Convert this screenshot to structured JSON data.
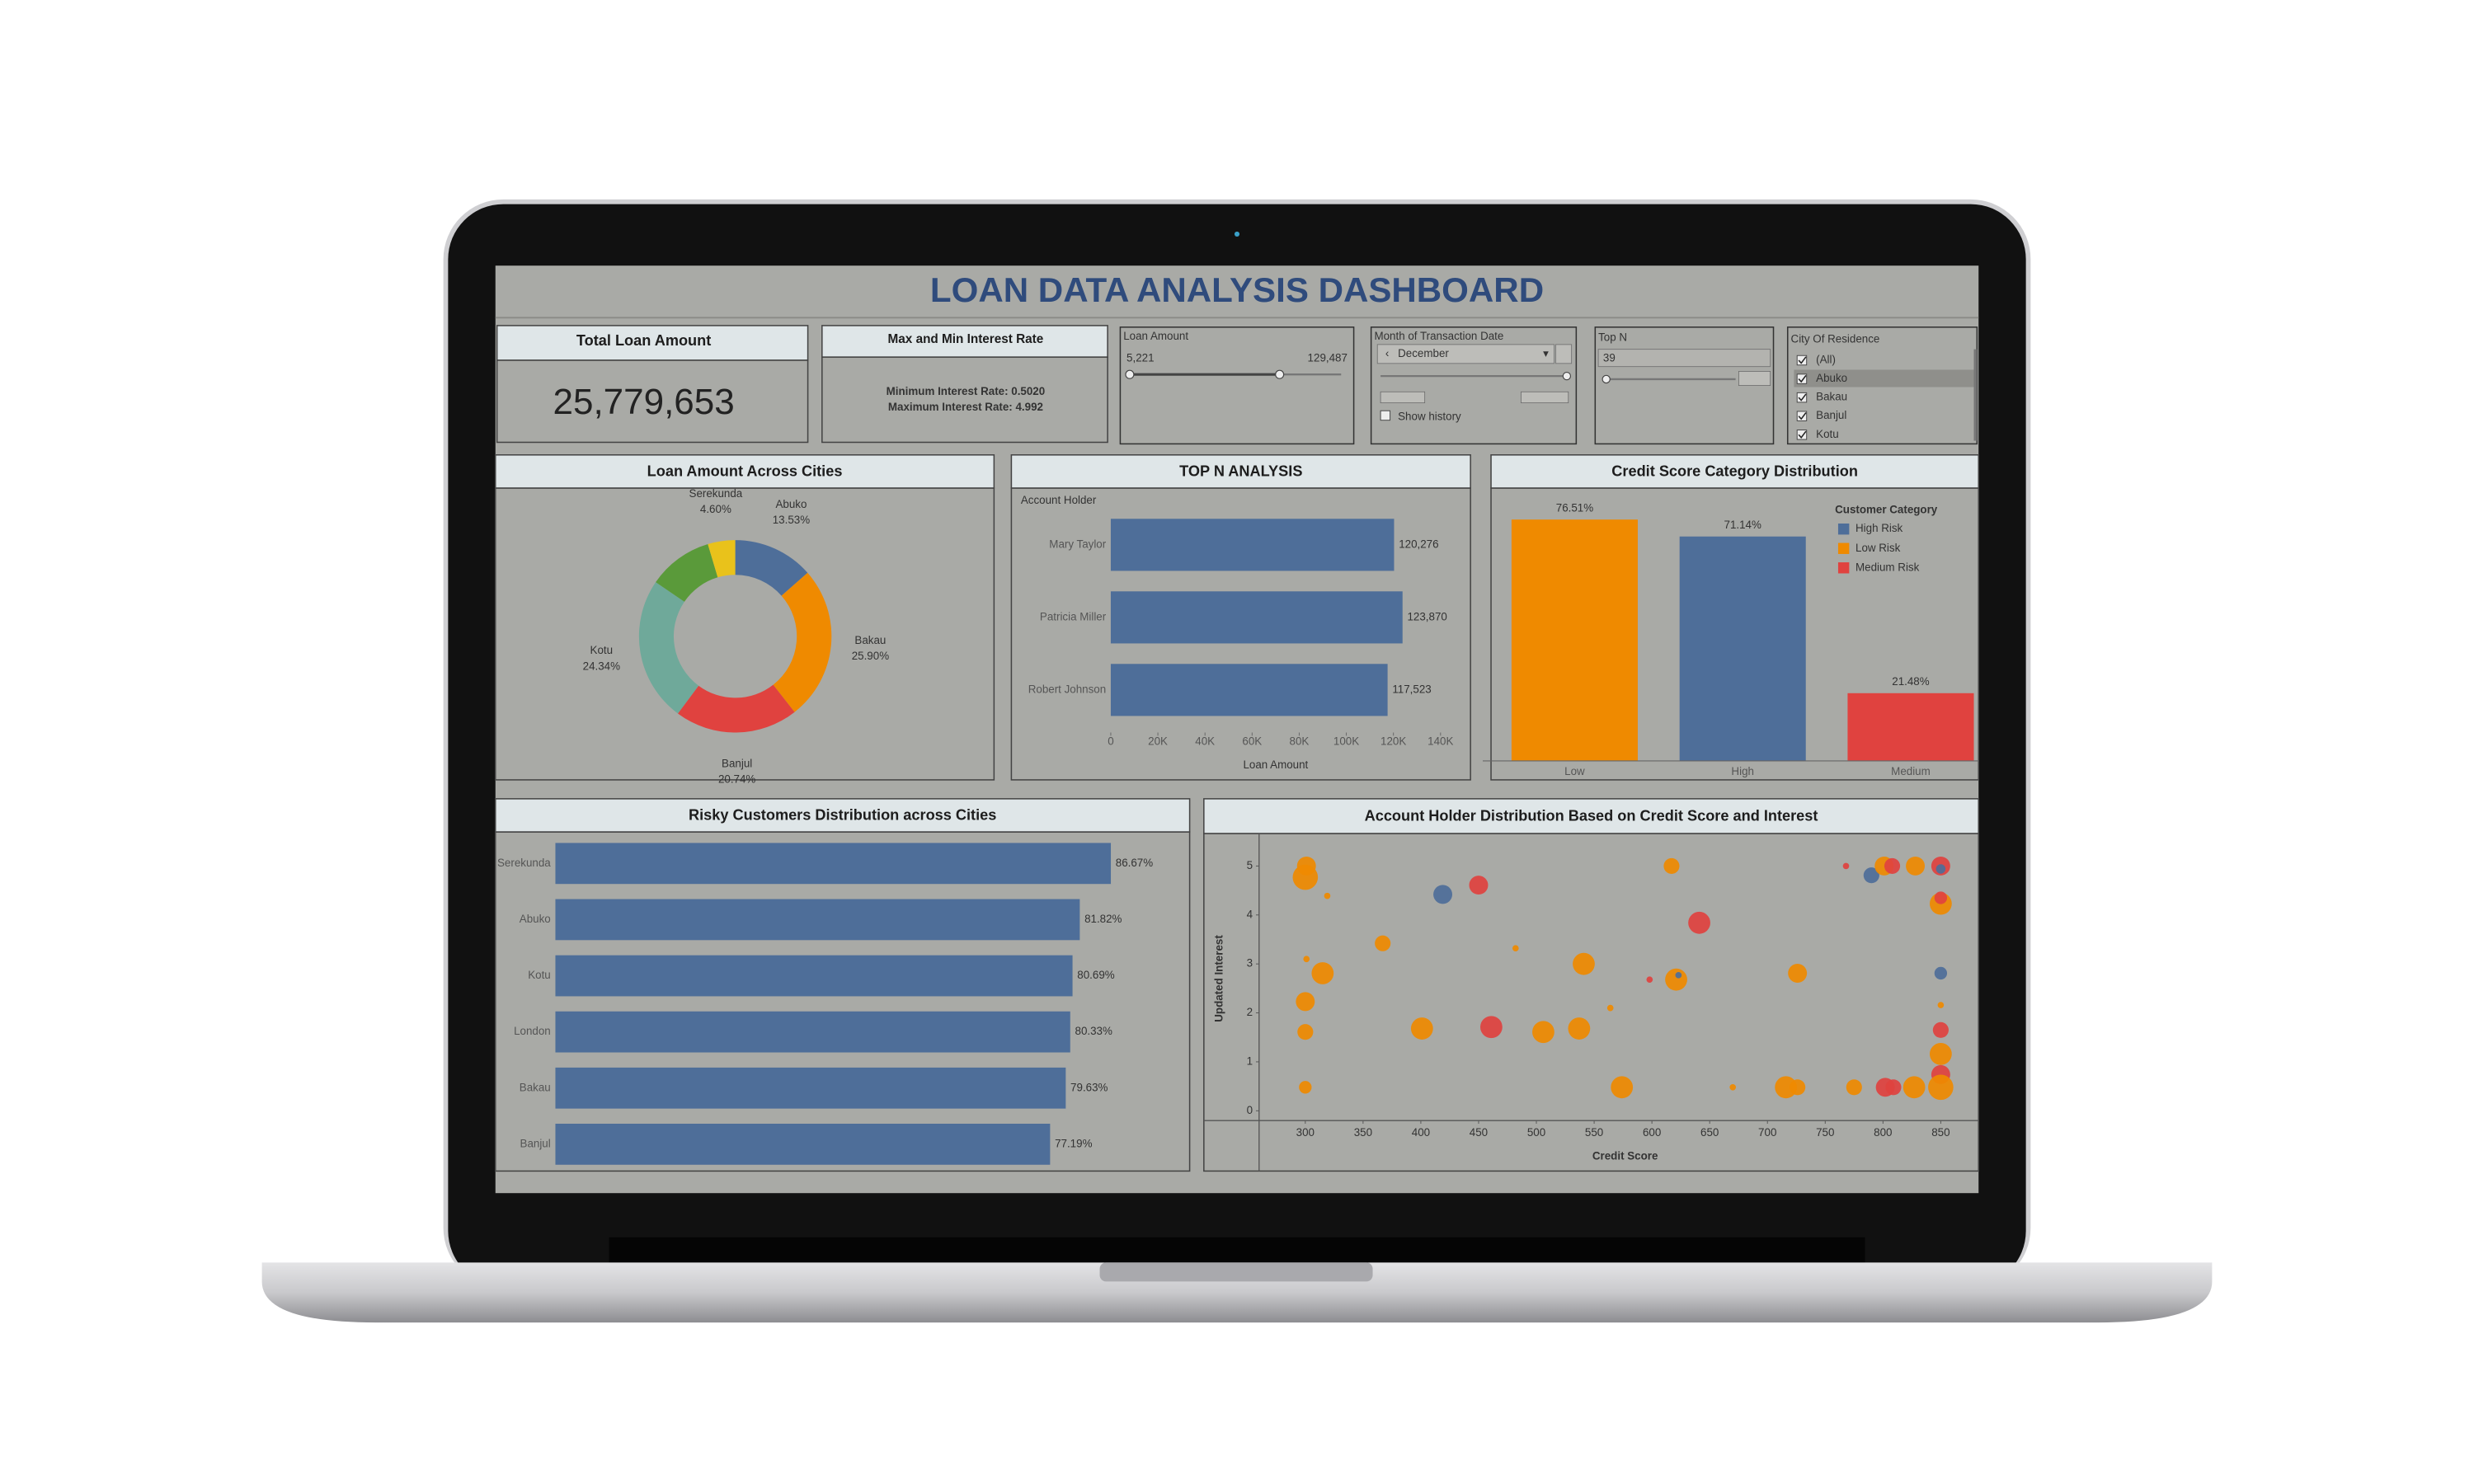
{
  "title": "LOAN DATA ANALYSIS DASHBOARD",
  "kpis": {
    "total_loan": {
      "title": "Total Loan Amount",
      "value": "25,779,653"
    },
    "interest_rate": {
      "title": "Max and Min Interest Rate",
      "lines": [
        "Minimum Interest Rate: 0.5020",
        "Maximum Interest Rate: 4.992"
      ]
    }
  },
  "filters": {
    "loan_amount": {
      "label": "Loan Amount",
      "min": "5,221",
      "max": "129,487"
    },
    "month": {
      "label": "Month of Transaction Date",
      "value": "December",
      "option": "Show history"
    },
    "top_n": {
      "label": "Top N",
      "value": "39"
    },
    "city": {
      "label": "City Of Residence",
      "items": [
        "(All)",
        "Abuko",
        "Bakau",
        "Banjul",
        "Kotu"
      ]
    }
  },
  "chart_data": [
    {
      "type": "pie",
      "donut": true,
      "title": "Loan Amount Across Cities",
      "categories": [
        "Abuko",
        "Bakau",
        "Banjul",
        "Kotu",
        null,
        "Serekunda"
      ],
      "values": [
        13.53,
        25.9,
        20.74,
        24.34,
        10.89,
        4.6
      ],
      "value_labels": [
        "13.53%",
        "25.90%",
        "20.74%",
        "24.34%",
        null,
        "4.60%"
      ],
      "colors": [
        "#4e6e99",
        "#ef8a00",
        "#e0423f",
        "#6fa99a",
        "#5a9a3a",
        "#e9c21b"
      ]
    },
    {
      "type": "bar",
      "orientation": "horizontal",
      "title": "TOP N ANALYSIS",
      "ylabel": "Account Holder",
      "xlabel": "Loan Amount",
      "categories": [
        "Mary Taylor",
        "Patricia Miller",
        "Robert Johnson"
      ],
      "values": [
        120276,
        123870,
        117523
      ],
      "value_labels": [
        "120,276",
        "123,870",
        "117,523"
      ],
      "color": "#4e6e99",
      "xlim": [
        0,
        140000
      ],
      "xticks": [
        0,
        {
          "value": 20000,
          "label": "20K"
        },
        {
          "value": 40000,
          "label": "40K"
        },
        {
          "value": 60000,
          "label": "60K"
        },
        {
          "value": 80000,
          "label": "80K"
        },
        {
          "value": 100000,
          "label": "100K"
        },
        {
          "value": 120000,
          "label": "120K"
        },
        {
          "value": 140000,
          "label": "140K"
        }
      ]
    },
    {
      "type": "bar",
      "title": "Credit Score Category Distribution",
      "categories": [
        "Low",
        "High",
        "Medium"
      ],
      "values": [
        76.51,
        71.14,
        21.48
      ],
      "value_labels": [
        "76.51%",
        "71.14%",
        "21.48%"
      ],
      "colors": [
        "#ef8a00",
        "#4e6e99",
        "#e0423f"
      ],
      "ylim": [
        0,
        80
      ],
      "legend": {
        "title": "Customer Category",
        "items": [
          {
            "name": "High Risk",
            "color": "#4e6e99"
          },
          {
            "name": "Low Risk",
            "color": "#ef8a00"
          },
          {
            "name": "Medium Risk",
            "color": "#e0423f"
          }
        ]
      }
    },
    {
      "type": "bar",
      "orientation": "horizontal",
      "title": "Risky Customers Distribution across Cities",
      "categories": [
        "Serekunda",
        "Abuko",
        "Kotu",
        "London",
        "Bakau",
        "Banjul"
      ],
      "values": [
        86.67,
        81.82,
        80.69,
        80.33,
        79.63,
        77.19
      ],
      "value_labels": [
        "86.67%",
        "81.82%",
        "80.69%",
        "80.33%",
        "79.63%",
        "77.19%"
      ],
      "color": "#4e6e99",
      "xlim": [
        0,
        95
      ]
    },
    {
      "type": "scatter",
      "title": "Account Holder Distribution Based on Credit Score and Interest",
      "xlabel": "Credit Score",
      "ylabel": "Updated Interest",
      "x": [
        301,
        300,
        319,
        419,
        450,
        367,
        482,
        301,
        315,
        300,
        300,
        300,
        401,
        461,
        506,
        537,
        541,
        564,
        574,
        617,
        641,
        598,
        621,
        623,
        670,
        716,
        726,
        726,
        768,
        775,
        790,
        801,
        808,
        802,
        809,
        828,
        850,
        850,
        850,
        850,
        850,
        850,
        850,
        850,
        850,
        850,
        827
      ],
      "y": [
        5.0,
        4.77,
        4.39,
        4.42,
        4.61,
        3.42,
        3.32,
        3.1,
        2.81,
        2.23,
        1.61,
        0.48,
        1.68,
        1.71,
        1.61,
        1.68,
        3.0,
        2.1,
        0.48,
        5.0,
        3.84,
        2.68,
        2.68,
        2.77,
        0.48,
        0.48,
        2.81,
        0.48,
        5.0,
        0.48,
        4.81,
        5.0,
        5.0,
        0.48,
        0.48,
        5.0,
        5.0,
        4.94,
        4.23,
        4.35,
        2.81,
        2.16,
        1.65,
        1.16,
        0.74,
        0.48,
        0.48
      ],
      "sizes": [
        6,
        8,
        2,
        6,
        6,
        5,
        2,
        2,
        7,
        6,
        5,
        4,
        7,
        7,
        7,
        7,
        7,
        2,
        7,
        5,
        7,
        2,
        7,
        2,
        2,
        7,
        6,
        5,
        2,
        5,
        5,
        6,
        5,
        6,
        5,
        6,
        6,
        3,
        7,
        4,
        4,
        2,
        5,
        7,
        6,
        8,
        7
      ],
      "colors": [
        "#ef8a00",
        "#ef8a00",
        "#ef8a00",
        "#4e6e99",
        "#e0423f",
        "#ef8a00",
        "#ef8a00",
        "#ef8a00",
        "#ef8a00",
        "#ef8a00",
        "#ef8a00",
        "#ef8a00",
        "#ef8a00",
        "#e0423f",
        "#ef8a00",
        "#ef8a00",
        "#ef8a00",
        "#ef8a00",
        "#ef8a00",
        "#ef8a00",
        "#e0423f",
        "#e0423f",
        "#ef8a00",
        "#4e6e99",
        "#ef8a00",
        "#ef8a00",
        "#ef8a00",
        "#ef8a00",
        "#e0423f",
        "#ef8a00",
        "#4e6e99",
        "#ef8a00",
        "#e0423f",
        "#e0423f",
        "#e0423f",
        "#ef8a00",
        "#e0423f",
        "#4e6e99",
        "#ef8a00",
        "#e0423f",
        "#4e6e99",
        "#ef8a00",
        "#e0423f",
        "#ef8a00",
        "#e0423f",
        "#ef8a00",
        "#ef8a00"
      ],
      "xlim": [
        260,
        880
      ],
      "ylim": [
        -0.2,
        5.6
      ],
      "xticks": [
        300,
        350,
        400,
        450,
        500,
        550,
        600,
        650,
        700,
        750,
        800,
        850
      ],
      "yticks": [
        0,
        1,
        2,
        3,
        4,
        5
      ]
    }
  ]
}
